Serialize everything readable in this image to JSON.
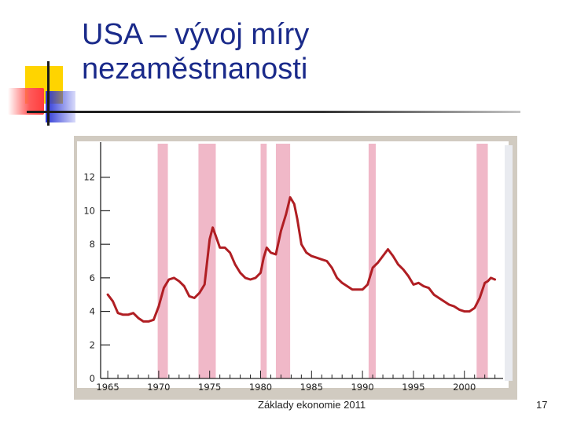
{
  "slide": {
    "title_line1": "USA – vývoj míry",
    "title_line2": "nezaměstnanosti",
    "footer": "Základy ekonomie 2011",
    "page_number": "17"
  },
  "colors": {
    "title": "#1a2a8a",
    "line": "#b01e23",
    "recession": "#f0b8c8",
    "frame": "#d1cbc1"
  },
  "chart_data": {
    "type": "line",
    "title": "",
    "xlabel": "",
    "ylabel": "",
    "xlim": [
      1964.3,
      2003.8
    ],
    "ylim": [
      0,
      14
    ],
    "x_ticks": [
      1965,
      1970,
      1975,
      1980,
      1985,
      1990,
      1995,
      2000
    ],
    "y_ticks": [
      0,
      2,
      4,
      6,
      8,
      10,
      12
    ],
    "recessions": [
      [
        1969.9,
        1970.9
      ],
      [
        1973.9,
        1975.6
      ],
      [
        1980.0,
        1980.6
      ],
      [
        1981.5,
        1982.9
      ],
      [
        1990.6,
        1991.3
      ],
      [
        2001.2,
        2002.3
      ]
    ],
    "series": [
      {
        "name": "",
        "x": [
          1965.0,
          1965.5,
          1966.0,
          1966.5,
          1967.0,
          1967.5,
          1968.0,
          1968.5,
          1969.0,
          1969.5,
          1970.0,
          1970.5,
          1971.0,
          1971.5,
          1972.0,
          1972.5,
          1973.0,
          1973.5,
          1974.0,
          1974.5,
          1975.0,
          1975.3,
          1975.6,
          1976.0,
          1976.5,
          1977.0,
          1977.5,
          1978.0,
          1978.5,
          1979.0,
          1979.5,
          1980.0,
          1980.3,
          1980.6,
          1981.0,
          1981.5,
          1982.0,
          1982.5,
          1982.9,
          1983.3,
          1983.6,
          1984.0,
          1984.5,
          1985.0,
          1985.5,
          1986.0,
          1986.5,
          1987.0,
          1987.5,
          1988.0,
          1988.5,
          1989.0,
          1989.5,
          1990.0,
          1990.5,
          1991.0,
          1991.5,
          1992.0,
          1992.5,
          1993.0,
          1993.5,
          1994.0,
          1994.5,
          1995.0,
          1995.5,
          1996.0,
          1996.5,
          1997.0,
          1997.5,
          1998.0,
          1998.5,
          1999.0,
          1999.5,
          2000.0,
          2000.5,
          2001.0,
          2001.5,
          2002.0,
          2002.3,
          2002.6,
          2003.0
        ],
        "values": [
          5.0,
          4.6,
          3.9,
          3.8,
          3.8,
          3.9,
          3.6,
          3.4,
          3.4,
          3.5,
          4.3,
          5.4,
          5.9,
          6.0,
          5.8,
          5.5,
          4.9,
          4.8,
          5.1,
          5.6,
          8.3,
          9.0,
          8.5,
          7.8,
          7.8,
          7.5,
          6.8,
          6.3,
          6.0,
          5.9,
          6.0,
          6.3,
          7.2,
          7.8,
          7.5,
          7.4,
          8.8,
          9.8,
          10.8,
          10.4,
          9.5,
          8.0,
          7.5,
          7.3,
          7.2,
          7.1,
          7.0,
          6.6,
          6.0,
          5.7,
          5.5,
          5.3,
          5.3,
          5.3,
          5.6,
          6.6,
          6.9,
          7.3,
          7.7,
          7.3,
          6.8,
          6.5,
          6.1,
          5.6,
          5.7,
          5.5,
          5.4,
          5.0,
          4.8,
          4.6,
          4.4,
          4.3,
          4.1,
          4.0,
          4.0,
          4.2,
          4.8,
          5.7,
          5.8,
          6.0,
          5.9
        ]
      }
    ]
  }
}
